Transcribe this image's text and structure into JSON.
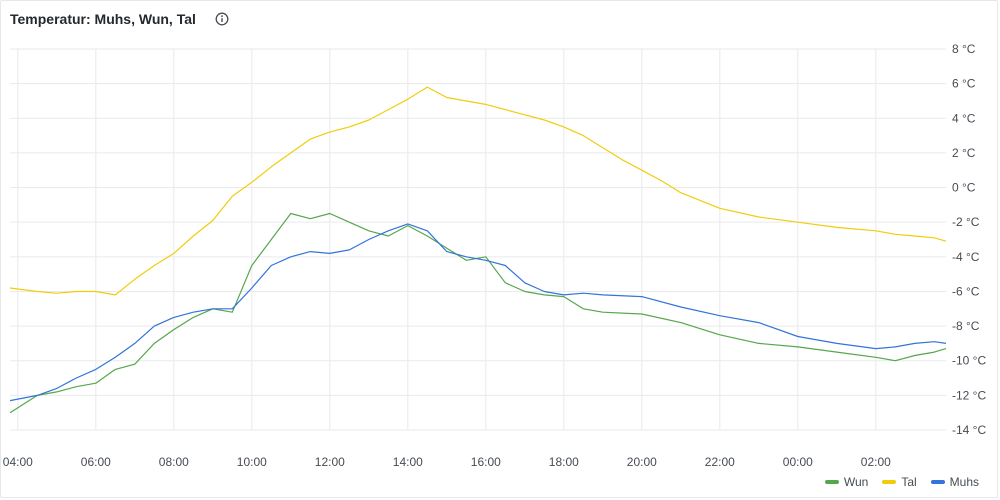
{
  "panel": {
    "title": "Temperatur: Muhs, Wun, Tal"
  },
  "chart_data": {
    "type": "line",
    "title": "Temperatur: Muhs, Wun, Tal",
    "xlabel": "",
    "ylabel": "",
    "ylim": [
      -14,
      8
    ],
    "y_ticks": [
      "8 °C",
      "6 °C",
      "4 °C",
      "2 °C",
      "0 °C",
      "-2 °C",
      "-4 °C",
      "-6 °C",
      "-8 °C",
      "-10 °C",
      "-12 °C",
      "-14 °C"
    ],
    "y_tick_values": [
      8,
      6,
      4,
      2,
      0,
      -2,
      -4,
      -6,
      -8,
      -10,
      -12,
      -14
    ],
    "x_ticks": [
      "04:00",
      "06:00",
      "08:00",
      "10:00",
      "12:00",
      "14:00",
      "16:00",
      "18:00",
      "20:00",
      "22:00",
      "00:00",
      "02:00"
    ],
    "x_tick_hours": [
      4,
      6,
      8,
      10,
      12,
      14,
      16,
      18,
      20,
      22,
      24,
      26
    ],
    "xlim_hours": [
      3.8,
      27.8
    ],
    "x_unit": "hour",
    "grid": true,
    "legend_position": "bottom-right",
    "series": [
      {
        "name": "Wun",
        "color": "#56a64b",
        "x": [
          3.8,
          4.5,
          5.0,
          5.5,
          6.0,
          6.5,
          7.0,
          7.5,
          8.0,
          8.5,
          9.0,
          9.5,
          10.0,
          10.5,
          11.0,
          11.5,
          12.0,
          12.5,
          13.0,
          13.5,
          14.0,
          14.5,
          15.0,
          15.5,
          16.0,
          16.5,
          17.0,
          17.5,
          18.0,
          18.5,
          19.0,
          20.0,
          21.0,
          22.0,
          23.0,
          24.0,
          25.0,
          26.0,
          26.5,
          27.0,
          27.5,
          27.8
        ],
        "y": [
          -13.0,
          -12.0,
          -11.8,
          -11.5,
          -11.3,
          -10.5,
          -10.2,
          -9.0,
          -8.2,
          -7.5,
          -7.0,
          -7.2,
          -4.5,
          -3.0,
          -1.5,
          -1.8,
          -1.5,
          -2.0,
          -2.5,
          -2.8,
          -2.2,
          -2.8,
          -3.5,
          -4.2,
          -4.0,
          -5.5,
          -6.0,
          -6.2,
          -6.3,
          -7.0,
          -7.2,
          -7.3,
          -7.8,
          -8.5,
          -9.0,
          -9.2,
          -9.5,
          -9.8,
          -10.0,
          -9.7,
          -9.5,
          -9.3
        ]
      },
      {
        "name": "Tal",
        "color": "#f2cc0c",
        "x": [
          3.8,
          4.5,
          5.0,
          5.5,
          6.0,
          6.5,
          7.0,
          7.5,
          8.0,
          8.5,
          9.0,
          9.5,
          10.0,
          10.5,
          11.0,
          11.5,
          12.0,
          12.5,
          13.0,
          13.5,
          14.0,
          14.5,
          15.0,
          15.5,
          16.0,
          16.5,
          17.0,
          17.5,
          18.0,
          18.5,
          19.0,
          19.5,
          20.0,
          20.5,
          21.0,
          22.0,
          23.0,
          24.0,
          25.0,
          26.0,
          26.5,
          27.0,
          27.5,
          27.8
        ],
        "y": [
          -5.8,
          -6.0,
          -6.1,
          -6.0,
          -6.0,
          -6.2,
          -5.3,
          -4.5,
          -3.8,
          -2.8,
          -1.9,
          -0.5,
          0.3,
          1.2,
          2.0,
          2.8,
          3.2,
          3.5,
          3.9,
          4.5,
          5.1,
          5.8,
          5.2,
          5.0,
          4.8,
          4.5,
          4.2,
          3.9,
          3.5,
          3.0,
          2.3,
          1.6,
          1.0,
          0.4,
          -0.3,
          -1.2,
          -1.7,
          -2.0,
          -2.3,
          -2.5,
          -2.7,
          -2.8,
          -2.9,
          -3.1
        ]
      },
      {
        "name": "Muhs",
        "color": "#3274d9",
        "x": [
          3.8,
          4.5,
          5.0,
          5.5,
          6.0,
          6.5,
          7.0,
          7.5,
          8.0,
          8.5,
          9.0,
          9.5,
          10.0,
          10.5,
          11.0,
          11.5,
          12.0,
          12.5,
          13.0,
          13.5,
          14.0,
          14.5,
          15.0,
          15.5,
          16.0,
          16.5,
          17.0,
          17.5,
          18.0,
          18.5,
          19.0,
          20.0,
          21.0,
          22.0,
          23.0,
          24.0,
          25.0,
          26.0,
          26.5,
          27.0,
          27.5,
          27.8
        ],
        "y": [
          -12.3,
          -12.0,
          -11.6,
          -11.0,
          -10.5,
          -9.8,
          -9.0,
          -8.0,
          -7.5,
          -7.2,
          -7.0,
          -7.0,
          -5.8,
          -4.5,
          -4.0,
          -3.7,
          -3.8,
          -3.6,
          -3.0,
          -2.5,
          -2.1,
          -2.5,
          -3.7,
          -4.0,
          -4.2,
          -4.5,
          -5.5,
          -6.0,
          -6.2,
          -6.1,
          -6.2,
          -6.3,
          -6.9,
          -7.4,
          -7.8,
          -8.6,
          -9.0,
          -9.3,
          -9.2,
          -9.0,
          -8.9,
          -9.0
        ]
      }
    ]
  }
}
